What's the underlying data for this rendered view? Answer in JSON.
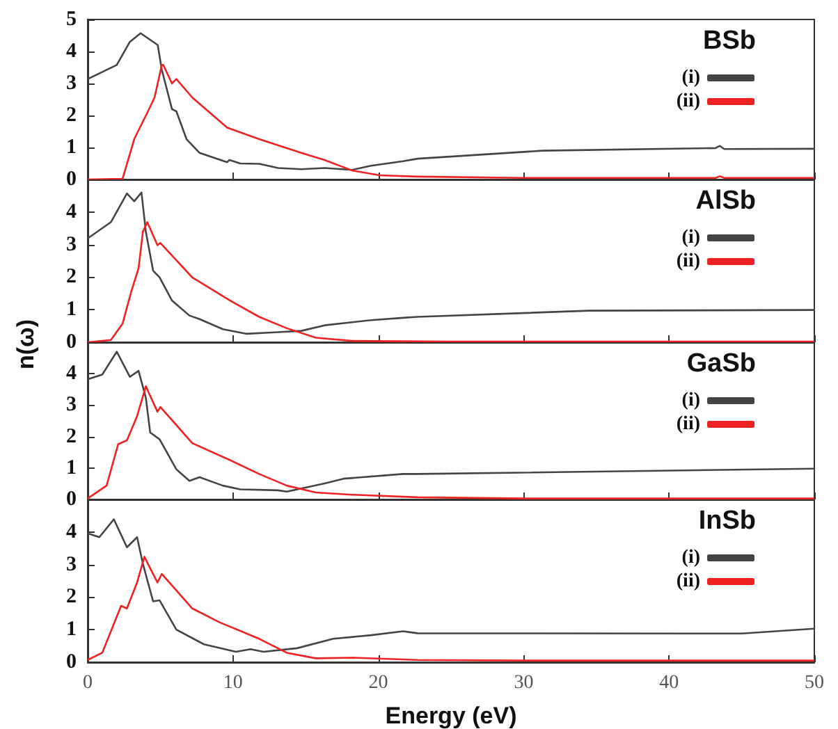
{
  "chart_data": [
    {
      "type": "line",
      "legend_title": "BSb",
      "legend": "top right",
      "tick_labels": "y",
      "xlim": [
        0,
        50
      ],
      "xticks": [
        0,
        10,
        20,
        30,
        40,
        50
      ],
      "ylim": [
        0,
        5
      ],
      "yticks": [
        0,
        1,
        2,
        3,
        4,
        5
      ],
      "series": [
        {
          "name": "(i)",
          "color": "#444444",
          "x": [
            0,
            2.0,
            2.9,
            3.64,
            4.82,
            5.1,
            5.8,
            6.1,
            6.8,
            7.7,
            9.6,
            9.75,
            10.5,
            11.8,
            13.1,
            14.7,
            16.3,
            18.2,
            19.5,
            21.7,
            22.7,
            31.3,
            43.2,
            43.5,
            43.8,
            50
          ],
          "values": [
            3.14,
            3.58,
            4.3,
            4.57,
            4.2,
            3.43,
            2.2,
            2.13,
            1.26,
            0.83,
            0.54,
            0.61,
            0.5,
            0.49,
            0.36,
            0.32,
            0.36,
            0.3,
            0.43,
            0.57,
            0.65,
            0.9,
            0.98,
            1.05,
            0.95,
            0.96
          ]
        },
        {
          "name": "(ii)",
          "color": "#ee2222",
          "x": [
            0,
            2.4,
            3.2,
            4.15,
            4.6,
            5.1,
            5.2,
            5.8,
            6.1,
            7.2,
            9.6,
            11.8,
            14.7,
            16.3,
            18.2,
            20.1,
            22.7,
            30,
            43.2,
            43.5,
            43.8,
            50
          ],
          "values": [
            0,
            0.02,
            1.26,
            2.13,
            2.56,
            3.58,
            3.58,
            3.0,
            3.14,
            2.56,
            1.62,
            1.26,
            0.83,
            0.61,
            0.28,
            0.13,
            0.09,
            0.05,
            0.05,
            0.1,
            0.05,
            0.05
          ]
        }
      ]
    },
    {
      "type": "line",
      "legend_title": "AlSb",
      "legend": "top right",
      "tick_labels": "y",
      "ylabel": "n(ω)",
      "xlim": [
        0,
        50
      ],
      "xticks": [
        0,
        10,
        20,
        30,
        40,
        50
      ],
      "ylim": [
        0,
        5
      ],
      "yticks": [
        0,
        1,
        2,
        3,
        4
      ],
      "series": [
        {
          "name": "(i)",
          "color": "#444444",
          "x": [
            0,
            1.6,
            2.7,
            3.2,
            3.7,
            4.0,
            4.5,
            4.95,
            5.8,
            7.0,
            7.7,
            9.3,
            10.9,
            13.1,
            14.7,
            16.3,
            19.5,
            21.7,
            22.7,
            34.5,
            50
          ],
          "values": [
            3.19,
            3.69,
            4.57,
            4.33,
            4.6,
            3.4,
            2.2,
            1.99,
            1.28,
            0.82,
            0.71,
            0.4,
            0.26,
            0.31,
            0.35,
            0.52,
            0.68,
            0.75,
            0.78,
            0.97,
            0.99
          ]
        },
        {
          "name": "(ii)",
          "color": "#ee2222",
          "x": [
            0,
            1.6,
            2.4,
            3.0,
            3.5,
            3.8,
            4.1,
            4.8,
            5.0,
            7.2,
            9.8,
            11.8,
            13.7,
            15.7,
            18.2,
            25,
            50
          ],
          "values": [
            0,
            0.07,
            0.57,
            1.56,
            2.27,
            3.4,
            3.69,
            2.98,
            3.05,
            1.99,
            1.28,
            0.78,
            0.43,
            0.14,
            0.04,
            0.02,
            0.02
          ]
        }
      ]
    },
    {
      "type": "line",
      "legend_title": "GaSb",
      "legend": "top right",
      "tick_labels": "y",
      "xlim": [
        0,
        50
      ],
      "xticks": [
        0,
        10,
        20,
        30,
        40,
        50
      ],
      "ylim": [
        0,
        5
      ],
      "yticks": [
        0,
        1,
        2,
        3,
        4
      ],
      "series": [
        {
          "name": "(i)",
          "color": "#444444",
          "x": [
            0,
            1.0,
            2.0,
            2.9,
            3.5,
            4.0,
            4.3,
            4.95,
            6.1,
            7.0,
            7.7,
            9.3,
            10.5,
            13.1,
            13.7,
            16.3,
            17.6,
            21.7,
            22.7,
            50
          ],
          "values": [
            3.82,
            3.97,
            4.7,
            3.9,
            4.09,
            3.24,
            2.13,
            1.91,
            0.96,
            0.59,
            0.71,
            0.44,
            0.32,
            0.29,
            0.25,
            0.51,
            0.66,
            0.81,
            0.81,
            0.98
          ]
        },
        {
          "name": "(ii)",
          "color": "#ee2222",
          "x": [
            0,
            1.3,
            2.1,
            2.7,
            3.4,
            4.0,
            4.8,
            5.0,
            7.2,
            9.8,
            11.8,
            13.7,
            15.7,
            18.2,
            22.7,
            30,
            50
          ],
          "values": [
            0.03,
            0.44,
            1.76,
            1.88,
            2.65,
            3.6,
            2.79,
            2.94,
            1.79,
            1.25,
            0.81,
            0.44,
            0.22,
            0.15,
            0.07,
            0.03,
            0.03
          ]
        }
      ]
    },
    {
      "type": "line",
      "legend_title": "InSb",
      "legend": "top right",
      "xlabel": "Energy (eV)",
      "xlim": [
        0,
        50
      ],
      "xticks": [
        0,
        10,
        20,
        30,
        40,
        50
      ],
      "ylim": [
        0,
        5
      ],
      "yticks": [
        0,
        1,
        2,
        3,
        4
      ],
      "series": [
        {
          "name": "(i)",
          "color": "#444444",
          "x": [
            0,
            0.8,
            1.8,
            2.7,
            3.4,
            3.8,
            4.5,
            4.95,
            6.1,
            8.0,
            10.2,
            11.2,
            12.1,
            14.4,
            16.9,
            19.5,
            21.7,
            22.7,
            45,
            50
          ],
          "values": [
            3.96,
            3.84,
            4.39,
            3.53,
            3.84,
            3.02,
            1.87,
            1.9,
            1.0,
            0.55,
            0.32,
            0.4,
            0.32,
            0.43,
            0.72,
            0.83,
            0.95,
            0.89,
            0.88,
            1.03
          ]
        },
        {
          "name": "(ii)",
          "color": "#ee2222",
          "x": [
            0,
            1.0,
            2.3,
            2.7,
            3.4,
            3.9,
            4.8,
            5.1,
            7.2,
            9.1,
            11.8,
            13.7,
            15.7,
            18.2,
            22.7,
            30,
            50
          ],
          "values": [
            0.07,
            0.29,
            1.73,
            1.65,
            2.45,
            3.24,
            2.45,
            2.71,
            1.65,
            1.22,
            0.72,
            0.29,
            0.12,
            0.14,
            0.07,
            0.05,
            0.05
          ]
        }
      ]
    }
  ]
}
